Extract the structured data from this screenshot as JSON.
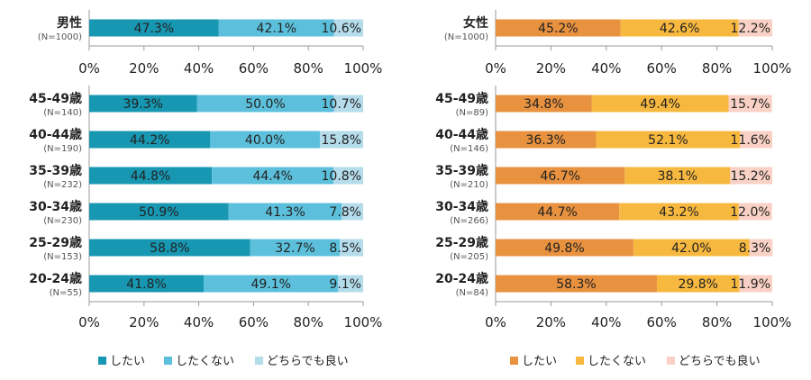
{
  "chart_data": [
    {
      "type": "bar",
      "orientation": "horizontal",
      "stacked": true,
      "categories": [
        "男性"
      ],
      "category_notes": [
        "(N=1000)"
      ],
      "series": [
        {
          "name": "したい",
          "values": [
            47.3
          ]
        },
        {
          "name": "したくない",
          "values": [
            42.1
          ]
        },
        {
          "name": "どちらでも良い",
          "values": [
            10.6
          ]
        }
      ],
      "value_labels": [
        [
          "47.3%",
          "42.1%",
          "10.6%"
        ]
      ],
      "xlim": [
        0,
        100
      ],
      "xticks": [
        "0%",
        "20%",
        "40%",
        "60%",
        "80%",
        "100%"
      ],
      "colors": [
        "#1797b2",
        "#5cc0dc",
        "#b5dceb"
      ]
    },
    {
      "type": "bar",
      "orientation": "horizontal",
      "stacked": true,
      "categories": [
        "45-49歳",
        "40-44歳",
        "35-39歳",
        "30-34歳",
        "25-29歳",
        "20-24歳"
      ],
      "category_notes": [
        "(N=140)",
        "(N=190)",
        "(N=232)",
        "(N=230)",
        "(N=153)",
        "(N=55)"
      ],
      "series": [
        {
          "name": "したい",
          "values": [
            39.3,
            44.2,
            44.8,
            50.9,
            58.8,
            41.8
          ]
        },
        {
          "name": "したくない",
          "values": [
            50.0,
            40.0,
            44.4,
            41.3,
            32.7,
            49.1
          ]
        },
        {
          "name": "どちらでも良い",
          "values": [
            10.7,
            15.8,
            10.8,
            7.8,
            8.5,
            9.1
          ]
        }
      ],
      "value_labels": [
        [
          "39.3%",
          "50.0%",
          "10.7%"
        ],
        [
          "44.2%",
          "40.0%",
          "15.8%"
        ],
        [
          "44.8%",
          "44.4%",
          "10.8%"
        ],
        [
          "50.9%",
          "41.3%",
          "7.8%"
        ],
        [
          "58.8%",
          "32.7%",
          "8.5%"
        ],
        [
          "41.8%",
          "49.1%",
          "9.1%"
        ]
      ],
      "xlim": [
        0,
        100
      ],
      "xticks": [
        "0%",
        "20%",
        "40%",
        "60%",
        "80%",
        "100%"
      ],
      "colors": [
        "#1797b2",
        "#5cc0dc",
        "#b5dceb"
      ]
    },
    {
      "type": "bar",
      "orientation": "horizontal",
      "stacked": true,
      "categories": [
        "女性"
      ],
      "category_notes": [
        "(N=1000)"
      ],
      "series": [
        {
          "name": "したい",
          "values": [
            45.2
          ]
        },
        {
          "name": "したくない",
          "values": [
            42.6
          ]
        },
        {
          "name": "どちらでも良い",
          "values": [
            12.2
          ]
        }
      ],
      "value_labels": [
        [
          "45.2%",
          "42.6%",
          "12.2%"
        ]
      ],
      "xlim": [
        0,
        100
      ],
      "xticks": [
        "0%",
        "20%",
        "40%",
        "60%",
        "80%",
        "100%"
      ],
      "colors": [
        "#e8913f",
        "#f7b83f",
        "#f9d2c5"
      ]
    },
    {
      "type": "bar",
      "orientation": "horizontal",
      "stacked": true,
      "categories": [
        "45-49歳",
        "40-44歳",
        "35-39歳",
        "30-34歳",
        "25-29歳",
        "20-24歳"
      ],
      "category_notes": [
        "(N=89)",
        "(N=146)",
        "(N=210)",
        "(N=266)",
        "(N=205)",
        "(N=84)"
      ],
      "series": [
        {
          "name": "したい",
          "values": [
            34.8,
            36.3,
            46.7,
            44.7,
            49.8,
            58.3
          ]
        },
        {
          "name": "したくない",
          "values": [
            49.4,
            52.1,
            38.1,
            43.2,
            42.0,
            29.8
          ]
        },
        {
          "name": "どちらでも良い",
          "values": [
            15.7,
            11.6,
            15.2,
            12.0,
            8.3,
            11.9
          ]
        }
      ],
      "value_labels": [
        [
          "34.8%",
          "49.4%",
          "15.7%"
        ],
        [
          "36.3%",
          "52.1%",
          "11.6%"
        ],
        [
          "46.7%",
          "38.1%",
          "15.2%"
        ],
        [
          "44.7%",
          "43.2%",
          "12.0%"
        ],
        [
          "49.8%",
          "42.0%",
          "8.3%"
        ],
        [
          "58.3%",
          "29.8%",
          "11.9%"
        ]
      ],
      "xlim": [
        0,
        100
      ],
      "xticks": [
        "0%",
        "20%",
        "40%",
        "60%",
        "80%",
        "100%"
      ],
      "colors": [
        "#e8913f",
        "#f7b83f",
        "#f9d2c5"
      ]
    }
  ],
  "legends": [
    {
      "items": [
        "したい",
        "したくない",
        "どちらでも良い"
      ],
      "colors": [
        "#1797b2",
        "#5cc0dc",
        "#b5dceb"
      ]
    },
    {
      "items": [
        "したい",
        "したくない",
        "どちらでも良い"
      ],
      "colors": [
        "#e8913f",
        "#f7b83f",
        "#f9d2c5"
      ]
    }
  ]
}
